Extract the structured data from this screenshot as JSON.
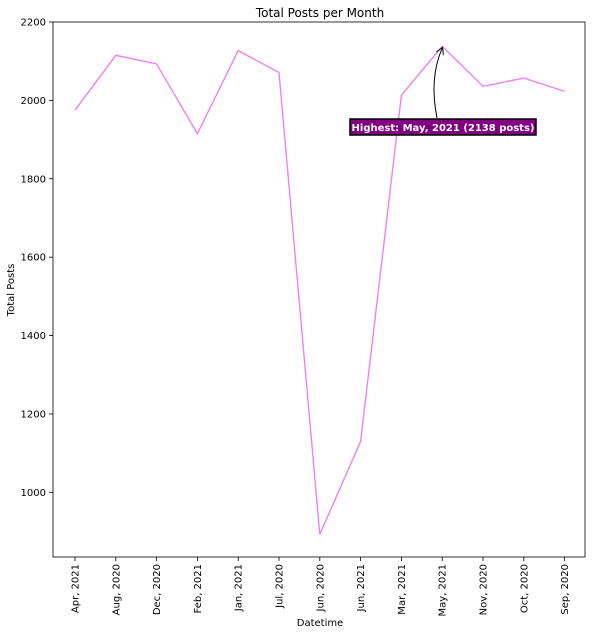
{
  "chart_data": {
    "type": "line",
    "title": "Total Posts per Month",
    "xlabel": "Datetime",
    "ylabel": "Total Posts",
    "categories": [
      "Apr, 2021",
      "Aug, 2020",
      "Dec, 2020",
      "Feb, 2021",
      "Jan, 2021",
      "Jul, 2020",
      "Jun, 2020",
      "Jun, 2021",
      "Mar, 2021",
      "May, 2021",
      "Nov, 2020",
      "Oct, 2020",
      "Sep, 2020"
    ],
    "values": [
      1975,
      2115,
      2093,
      1915,
      2127,
      2071,
      893,
      1130,
      2013,
      2138,
      2036,
      2057,
      2023
    ],
    "ylim": [
      835,
      2200
    ],
    "yticks": [
      1000,
      1200,
      1400,
      1600,
      1800,
      2000,
      2200
    ],
    "line_color": "#ee82ee",
    "grid": false,
    "annotation": {
      "text": "Highest: May, 2021 (2138 posts)",
      "target_category": "May, 2021",
      "target_value": 2138,
      "box_color": "#800080",
      "box_edge_color": "#000000",
      "text_color": "#ffffff"
    }
  }
}
